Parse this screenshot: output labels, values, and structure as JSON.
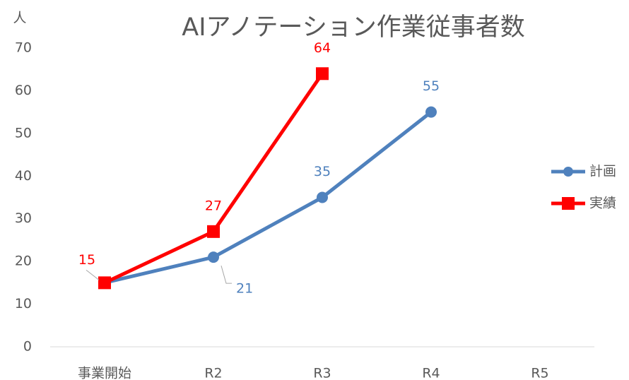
{
  "chart_data": {
    "type": "line",
    "title": "AIアノテーション作業従事者数",
    "y_label": "人",
    "categories": [
      "事業開始",
      "R2",
      "R3",
      "R4",
      "R5"
    ],
    "series": [
      {
        "name": "計画",
        "color": "#4f81bd",
        "marker": "circle",
        "values": [
          15,
          21,
          35,
          55,
          null
        ]
      },
      {
        "name": "実績",
        "color": "#ff0000",
        "marker": "square",
        "values": [
          15,
          27,
          64,
          null,
          null
        ]
      }
    ],
    "ylim": [
      0,
      70
    ],
    "yticks": [
      0,
      10,
      20,
      30,
      40,
      50,
      60,
      70
    ],
    "grid": false,
    "legend": "right"
  }
}
